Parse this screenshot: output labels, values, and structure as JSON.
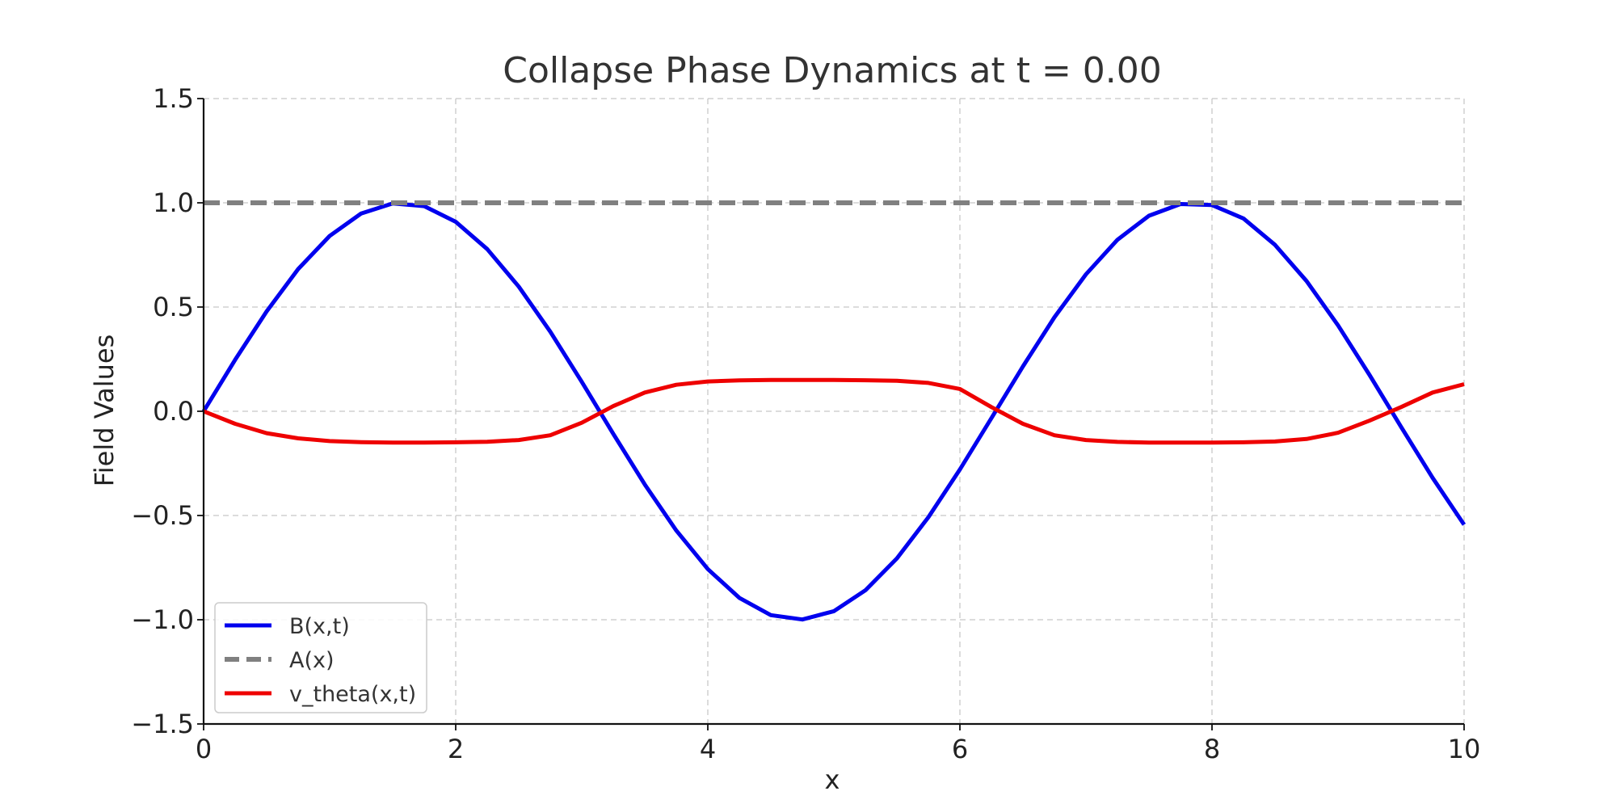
{
  "chart_data": {
    "type": "line",
    "title": "Collapse Phase Dynamics at t = 0.00",
    "xlabel": "x",
    "ylabel": "Field Values",
    "xlim": [
      0,
      10
    ],
    "ylim": [
      -1.5,
      1.5
    ],
    "xticks": [
      0,
      2,
      4,
      6,
      8,
      10
    ],
    "xtick_labels": [
      "0",
      "2",
      "4",
      "6",
      "8",
      "10"
    ],
    "yticks": [
      -1.5,
      -1.0,
      -0.5,
      0.0,
      0.5,
      1.0,
      1.5
    ],
    "ytick_labels": [
      "−1.5",
      "−1.0",
      "−0.5",
      "0.0",
      "0.5",
      "1.0",
      "1.5"
    ],
    "grid": true,
    "legend_position": "lower-left",
    "series": [
      {
        "name": "B(x,t)",
        "color": "#0000ee",
        "style": "solid",
        "x": [
          0,
          0.25,
          0.5,
          0.75,
          1.0,
          1.25,
          1.5,
          1.75,
          2.0,
          2.25,
          2.5,
          2.75,
          3.0,
          3.25,
          3.5,
          3.75,
          4.0,
          4.25,
          4.5,
          4.75,
          5.0,
          5.25,
          5.5,
          5.75,
          6.0,
          6.25,
          6.5,
          6.75,
          7.0,
          7.25,
          7.5,
          7.75,
          8.0,
          8.25,
          8.5,
          8.75,
          9.0,
          9.25,
          9.5,
          9.75,
          10.0
        ],
        "y": [
          0.0,
          0.247,
          0.479,
          0.682,
          0.841,
          0.949,
          0.997,
          0.984,
          0.909,
          0.778,
          0.598,
          0.382,
          0.141,
          -0.108,
          -0.351,
          -0.572,
          -0.757,
          -0.895,
          -0.978,
          -0.999,
          -0.959,
          -0.859,
          -0.706,
          -0.508,
          -0.279,
          -0.033,
          0.215,
          0.451,
          0.657,
          0.823,
          0.938,
          0.994,
          0.989,
          0.925,
          0.798,
          0.625,
          0.412,
          0.174,
          -0.075,
          -0.319,
          -0.544
        ]
      },
      {
        "name": "A(x)",
        "color": "#808080",
        "style": "dashed",
        "x": [
          0,
          10
        ],
        "y": [
          1.0,
          1.0
        ]
      },
      {
        "name": "v_theta(x,t)",
        "color": "#ee0000",
        "style": "solid",
        "x": [
          0,
          0.25,
          0.5,
          0.75,
          1.0,
          1.25,
          1.5,
          1.75,
          2.0,
          2.25,
          2.5,
          2.75,
          3.0,
          3.25,
          3.5,
          3.75,
          4.0,
          4.25,
          4.5,
          4.75,
          5.0,
          5.25,
          5.5,
          5.75,
          6.0,
          6.25,
          6.5,
          6.75,
          7.0,
          7.25,
          7.5,
          7.75,
          8.0,
          8.25,
          8.5,
          8.75,
          9.0,
          9.25,
          9.5,
          9.75,
          10.0
        ],
        "y": [
          0.0,
          -0.06,
          -0.105,
          -0.13,
          -0.143,
          -0.148,
          -0.15,
          -0.15,
          -0.149,
          -0.146,
          -0.138,
          -0.115,
          -0.055,
          0.025,
          0.09,
          0.127,
          0.143,
          0.148,
          0.15,
          0.15,
          0.15,
          0.149,
          0.146,
          0.136,
          0.107,
          0.02,
          -0.06,
          -0.115,
          -0.138,
          -0.147,
          -0.15,
          -0.15,
          -0.15,
          -0.149,
          -0.145,
          -0.133,
          -0.103,
          -0.045,
          0.02,
          0.09,
          0.13
        ]
      }
    ]
  }
}
